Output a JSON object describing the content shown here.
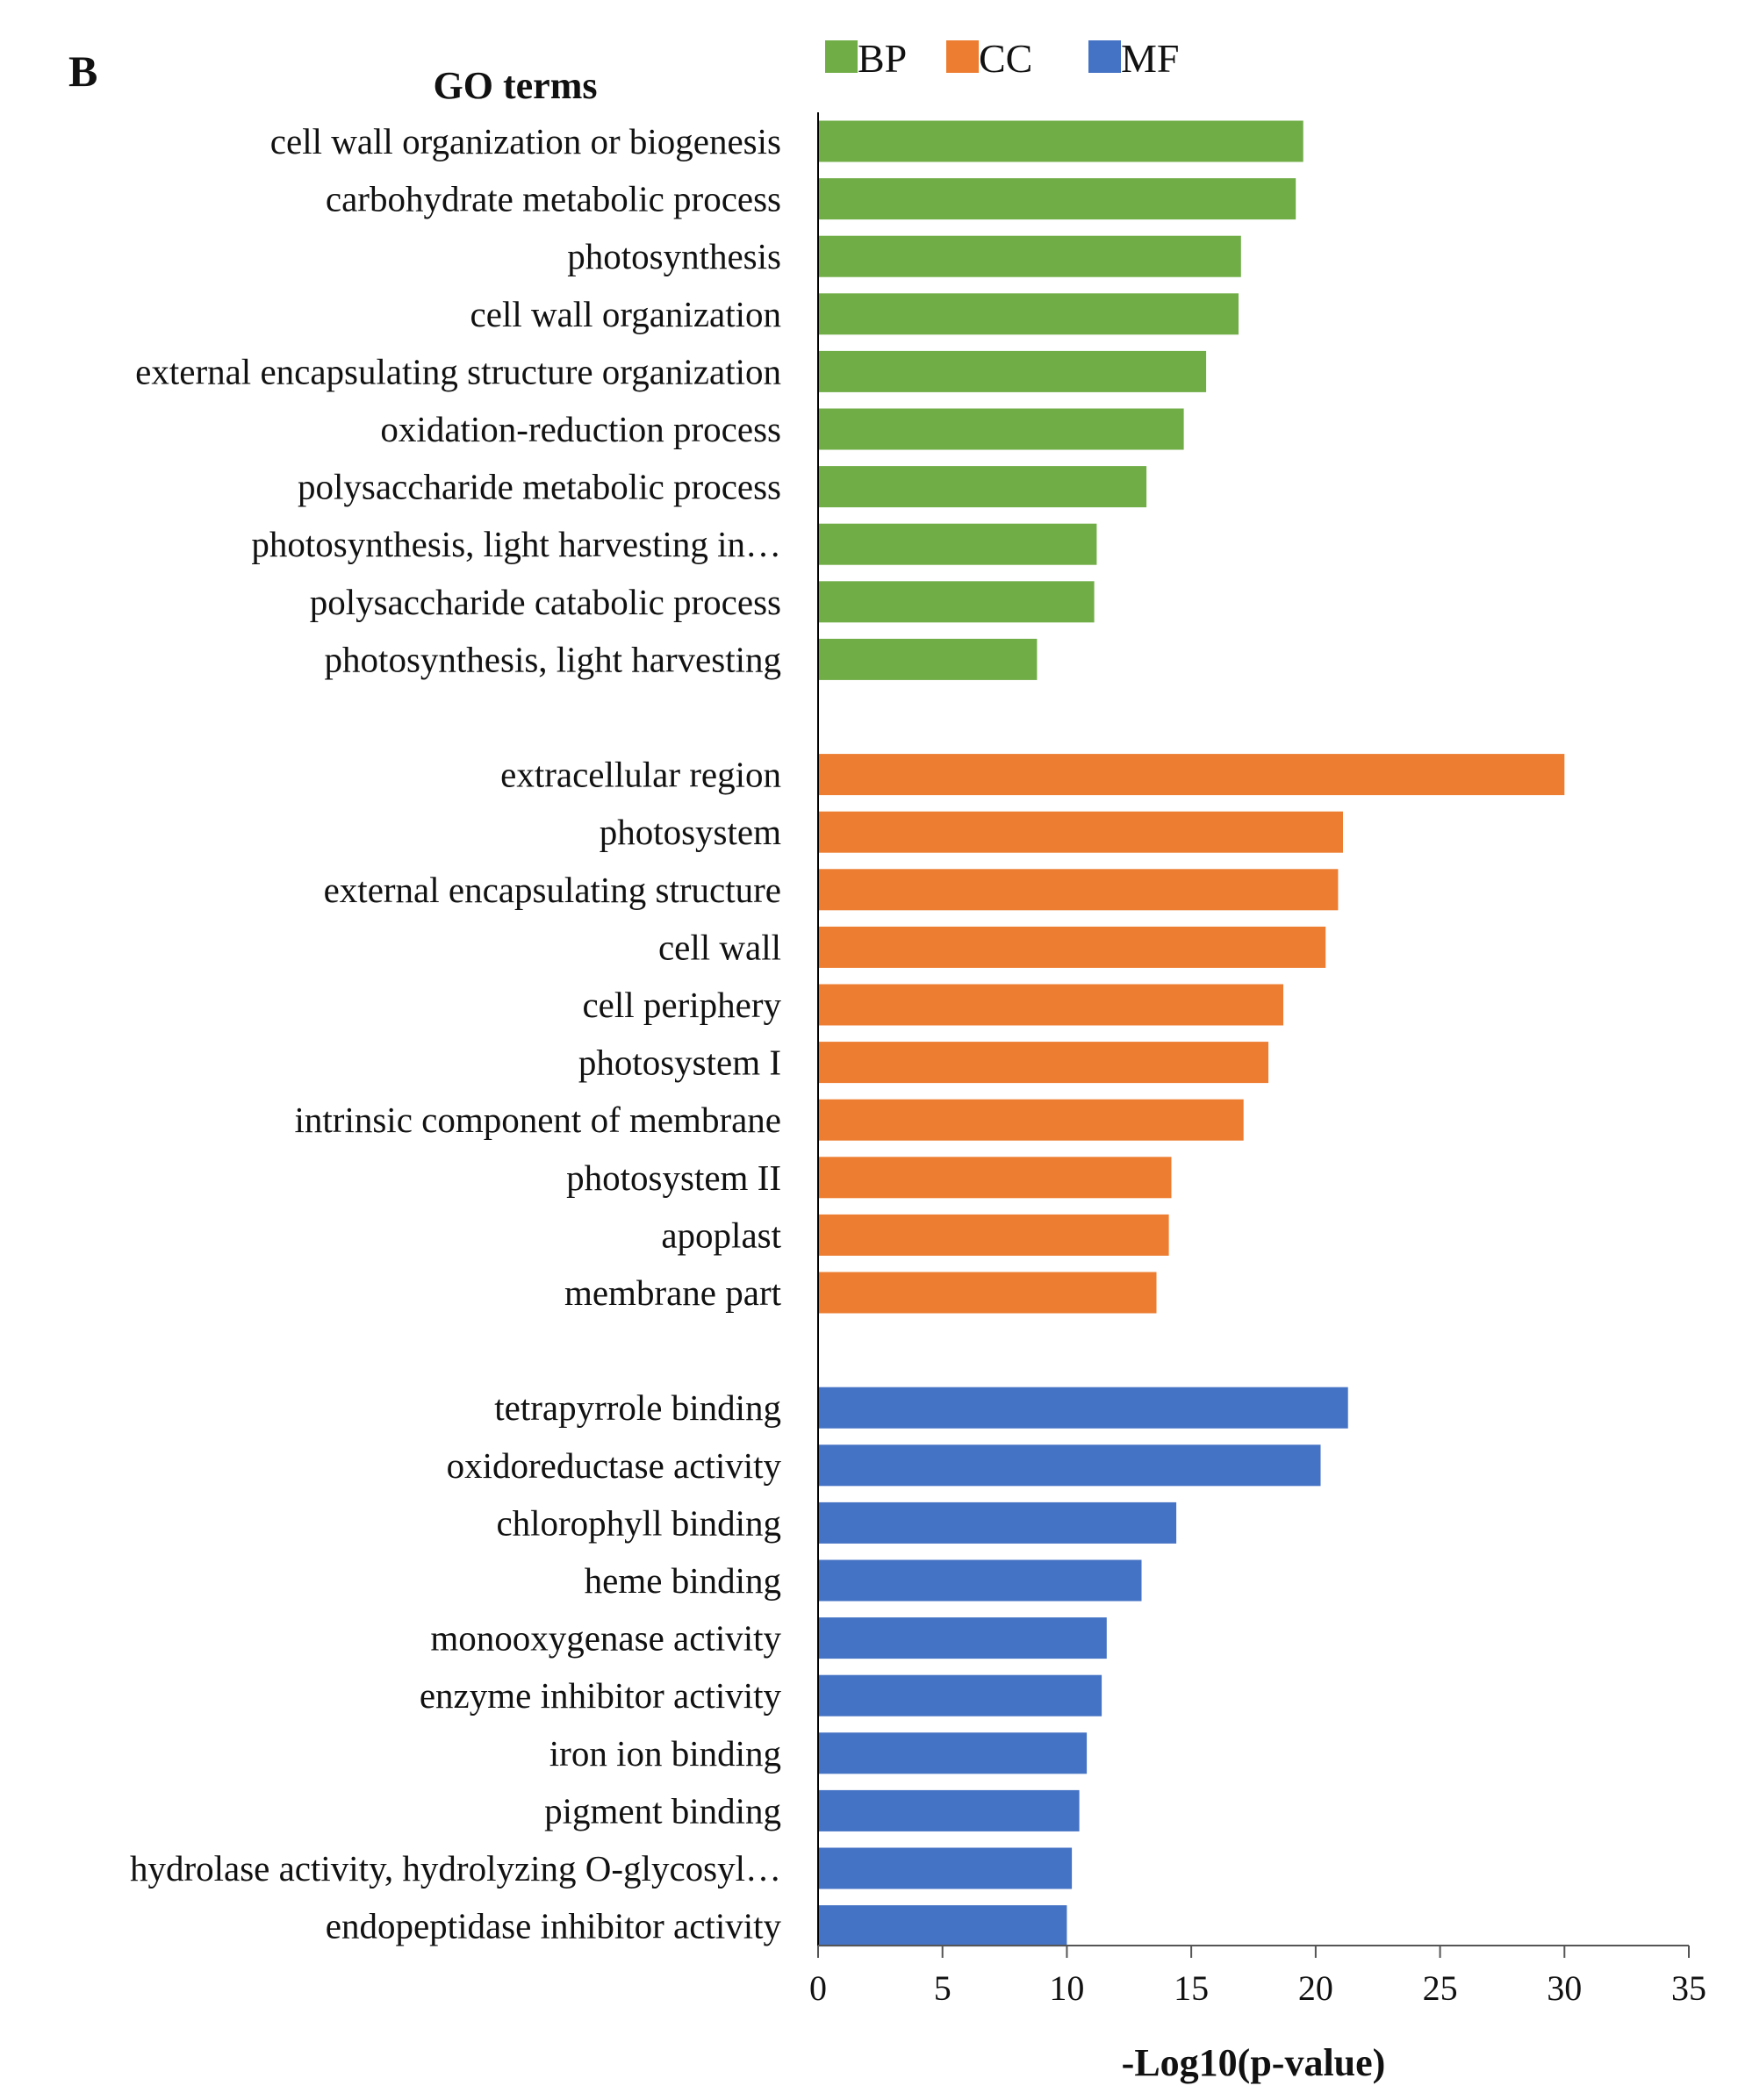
{
  "chart_data": {
    "type": "bar",
    "orientation": "horizontal",
    "panel_label": "B",
    "title": "GO terms",
    "xlabel": "-Log10(p-value)",
    "ylabel": "",
    "xlim": [
      0,
      35
    ],
    "xticks": [
      0,
      5,
      10,
      15,
      20,
      25,
      30,
      35
    ],
    "grid": false,
    "legend_position": "top",
    "colors": {
      "BP": "#70ad47",
      "CC": "#ed7d31",
      "MF": "#4472c4"
    },
    "groups": [
      {
        "name": "BP",
        "categories": [
          "cell wall organization or biogenesis",
          "carbohydrate metabolic process",
          "photosynthesis",
          "cell wall organization",
          "external encapsulating structure organization",
          "oxidation-reduction process",
          "polysaccharide metabolic process",
          "photosynthesis, light harvesting in…",
          "polysaccharide catabolic process",
          "photosynthesis, light harvesting"
        ],
        "values": [
          19.5,
          19.2,
          17.0,
          16.9,
          15.6,
          14.7,
          13.2,
          11.2,
          11.1,
          8.8
        ]
      },
      {
        "name": "CC",
        "categories": [
          "extracellular region",
          "photosystem",
          "external encapsulating structure",
          "cell wall",
          "cell periphery",
          "photosystem I",
          "intrinsic component of membrane",
          "photosystem II",
          "apoplast",
          "membrane part"
        ],
        "values": [
          30.0,
          21.1,
          20.9,
          20.4,
          18.7,
          18.1,
          17.1,
          14.2,
          14.1,
          13.6
        ]
      },
      {
        "name": "MF",
        "categories": [
          "tetrapyrrole binding",
          "oxidoreductase activity",
          "chlorophyll binding",
          "heme binding",
          "monooxygenase activity",
          "enzyme inhibitor activity",
          "iron ion binding",
          "pigment binding",
          "hydrolase activity, hydrolyzing O-glycosyl…",
          "endopeptidase inhibitor activity"
        ],
        "values": [
          21.3,
          20.2,
          14.4,
          13.0,
          11.6,
          11.4,
          10.8,
          10.5,
          10.2,
          10.0
        ]
      }
    ]
  }
}
